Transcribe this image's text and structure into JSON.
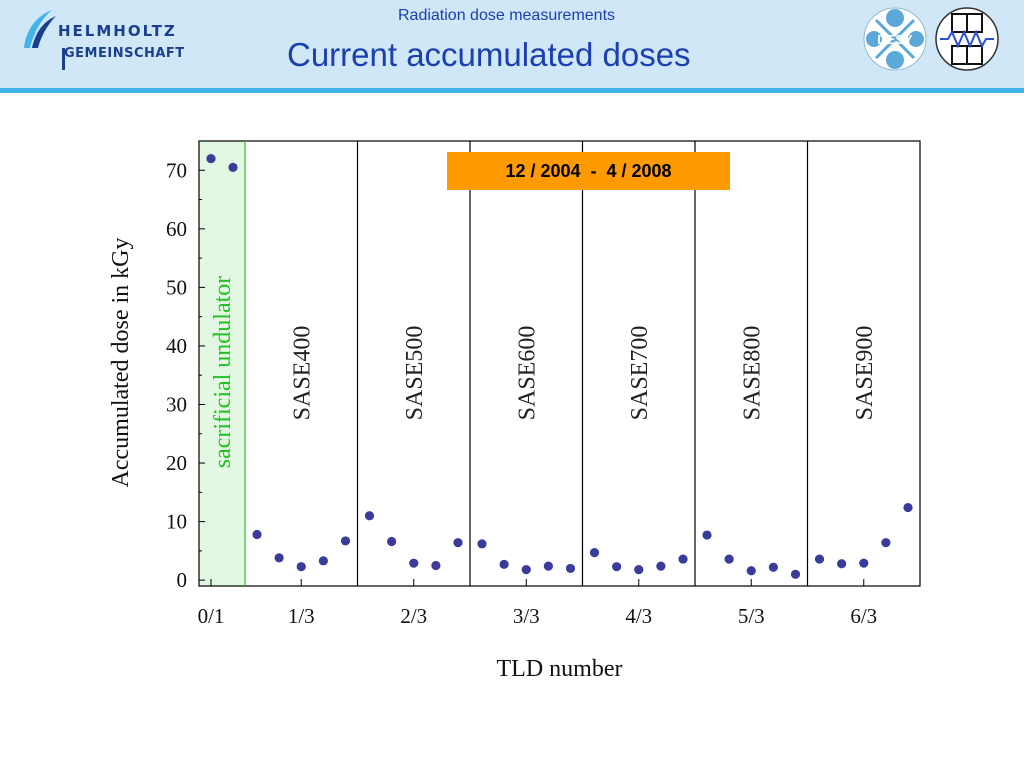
{
  "header": {
    "logo_line1": "HELMHOLTZ",
    "logo_line2": "GEMEINSCHAFT",
    "subtitle": "Radiation dose measurements",
    "title": "Current accumulated doses",
    "desy_label": "DESY",
    "colors": {
      "bar": "#cfe7f6",
      "accent": "#42b4ea",
      "title": "#1b3fb0"
    }
  },
  "period_label": "12 / 2004  -  4 / 2008",
  "chart_data": {
    "type": "scatter",
    "xlabel": "TLD number",
    "ylabel": "Accumulated dose in kGy",
    "ylim": [
      -1,
      75
    ],
    "yticks": [
      0,
      10,
      20,
      30,
      40,
      50,
      60,
      70
    ],
    "xticks": [
      "0/1",
      "1/3",
      "2/3",
      "3/3",
      "4/3",
      "5/3",
      "6/3"
    ],
    "grid": false,
    "marker_color": "#3b3b9c",
    "sections": [
      {
        "label": "sacrificial undulator",
        "color": "#22c022",
        "fill": "#e2f8e2",
        "values": [
          72,
          70.5
        ]
      },
      {
        "label": "SASE400",
        "color": "#222222",
        "values": [
          7.8,
          3.8,
          2.3,
          3.3,
          6.7
        ]
      },
      {
        "label": "SASE500",
        "color": "#222222",
        "values": [
          11,
          6.6,
          2.9,
          2.5,
          6.4
        ]
      },
      {
        "label": "SASE600",
        "color": "#222222",
        "values": [
          6.2,
          2.7,
          1.8,
          2.4,
          2.0
        ]
      },
      {
        "label": "SASE700",
        "color": "#222222",
        "values": [
          4.7,
          2.3,
          1.8,
          2.4,
          3.6
        ]
      },
      {
        "label": "SASE800",
        "color": "#222222",
        "values": [
          7.7,
          3.6,
          1.6,
          2.2,
          1.0
        ]
      },
      {
        "label": "SASE900",
        "color": "#222222",
        "values": [
          3.6,
          2.8,
          2.9,
          6.4,
          12.4
        ]
      }
    ]
  }
}
